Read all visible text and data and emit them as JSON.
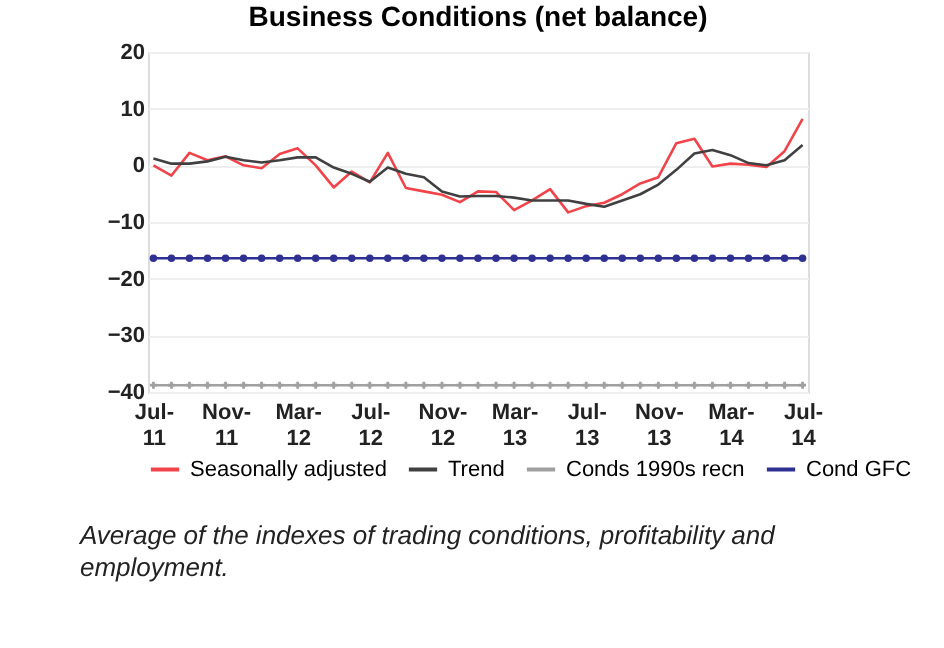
{
  "chart_data": {
    "type": "line",
    "title": "Business Conditions (net balance)",
    "categories": [
      "Jul-11",
      null,
      null,
      null,
      "Nov-11",
      null,
      null,
      null,
      "Mar-12",
      null,
      null,
      null,
      "Jul-12",
      null,
      null,
      null,
      "Nov-12",
      null,
      null,
      null,
      "Mar-13",
      null,
      null,
      null,
      "Jul-13",
      null,
      null,
      null,
      "Nov-13",
      null,
      null,
      null,
      "Mar-14",
      null,
      null,
      null,
      "Jul-14"
    ],
    "series": [
      {
        "name": "Seasonally adjusted",
        "color": "#f0444a",
        "marker": "none",
        "values": [
          0,
          -1.8,
          2.2,
          0.9,
          1.6,
          0,
          -0.5,
          2,
          3,
          0,
          -3.9,
          -1.1,
          -3,
          2.2,
          -4,
          -4.6,
          -5.2,
          -6.5,
          -4.6,
          -4.7,
          -7.9,
          -6.2,
          -4.2,
          -8.3,
          -7.2,
          -6.6,
          -5.1,
          -3.2,
          -2.1,
          3.9,
          4.7,
          -0.2,
          0.3,
          0.1,
          -0.3,
          2.5,
          8.2
        ]
      },
      {
        "name": "Trend",
        "color": "#404040",
        "marker": "none",
        "values": [
          1.2,
          0.3,
          0.3,
          0.7,
          1.5,
          0.9,
          0.5,
          0.9,
          1.4,
          1.4,
          -0.4,
          -1.5,
          -2.9,
          -0.4,
          -1.5,
          -2.1,
          -4.6,
          -5.5,
          -5.4,
          -5.4,
          -5.7,
          -6.2,
          -6.2,
          -6.2,
          -6.8,
          -7.3,
          -6.2,
          -5.1,
          -3.4,
          -0.8,
          2.1,
          2.7,
          1.8,
          0.4,
          0,
          0.9,
          3.6
        ]
      },
      {
        "name": "Conds 1990s recn",
        "color": "#a0a0a0",
        "marker": "cross",
        "values": [
          -38.8,
          -38.8,
          -38.8,
          -38.8,
          -38.8,
          -38.8,
          -38.8,
          -38.8,
          -38.8,
          -38.8,
          -38.8,
          -38.8,
          -38.8,
          -38.8,
          -38.8,
          -38.8,
          -38.8,
          -38.8,
          -38.8,
          -38.8,
          -38.8,
          -38.8,
          -38.8,
          -38.8,
          -38.8,
          -38.8,
          -38.8,
          -38.8,
          -38.8,
          -38.8,
          -38.8,
          -38.8,
          -38.8,
          -38.8,
          -38.8,
          -38.8,
          -38.8
        ]
      },
      {
        "name": "Cond GFC",
        "color": "#2e3192",
        "marker": "circle",
        "values": [
          -16.4,
          -16.4,
          -16.4,
          -16.4,
          -16.4,
          -16.4,
          -16.4,
          -16.4,
          -16.4,
          -16.4,
          -16.4,
          -16.4,
          -16.4,
          -16.4,
          -16.4,
          -16.4,
          -16.4,
          -16.4,
          -16.4,
          -16.4,
          -16.4,
          -16.4,
          -16.4,
          -16.4,
          -16.4,
          -16.4,
          -16.4,
          -16.4,
          -16.4,
          -16.4,
          -16.4,
          -16.4,
          -16.4,
          -16.4,
          -16.4,
          -16.4,
          -16.4
        ]
      }
    ],
    "ylim": [
      -40,
      20
    ],
    "yticks": [
      20,
      10,
      0,
      -10,
      -20,
      -30,
      -40
    ],
    "grid": "y",
    "legend": "bottom",
    "line_style": "solid",
    "annotations": [
      "Average of the indexes of trading conditions, profitability and employment."
    ]
  }
}
